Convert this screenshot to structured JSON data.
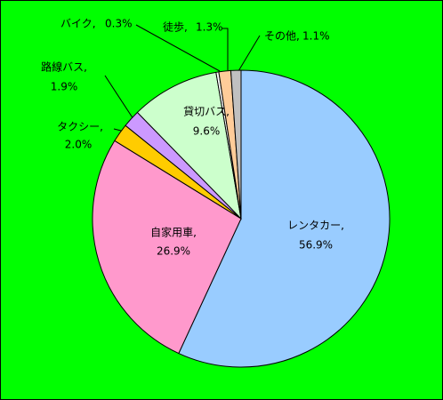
{
  "chart_data": {
    "type": "pie",
    "categories": [
      "レンタカー,",
      "自家用車,",
      "タクシー,",
      "路線バス,",
      "貸切バス,",
      "バイク,",
      "徒歩,",
      "その他,"
    ],
    "values": [
      56.9,
      26.9,
      2.0,
      1.9,
      9.6,
      0.3,
      1.3,
      1.1
    ],
    "value_labels": [
      "56.9%",
      "26.9%",
      "2.0%",
      "1.9%",
      "9.6%",
      "0.3%",
      "1.3%",
      "1.1%"
    ],
    "colors": [
      "#99ccff",
      "#ff99cc",
      "#ffcc00",
      "#cc99ff",
      "#ccffcc",
      "#ffffff",
      "#ffcc99",
      "#c0c0c0"
    ]
  }
}
